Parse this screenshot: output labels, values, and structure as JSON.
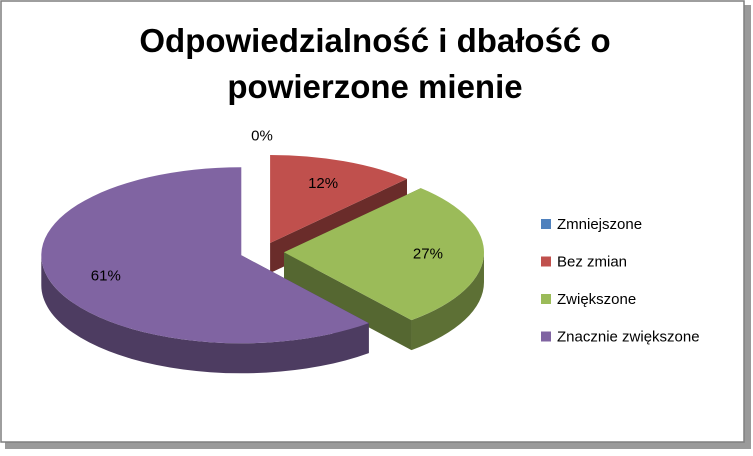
{
  "chart_data": {
    "type": "pie",
    "title": "Odpowiedzialność i dbałość o powierzone mienie",
    "categories": [
      "Zmniejszone",
      "Bez zmian",
      "Zwiększone",
      "Znacznie zwiększone"
    ],
    "values": [
      0,
      12,
      27,
      61
    ],
    "value_labels": [
      "0%",
      "12%",
      "27%",
      "61%"
    ],
    "colors": [
      "#4f81bd",
      "#c0504d",
      "#9bbb59",
      "#8064a2"
    ],
    "legend": "right"
  }
}
